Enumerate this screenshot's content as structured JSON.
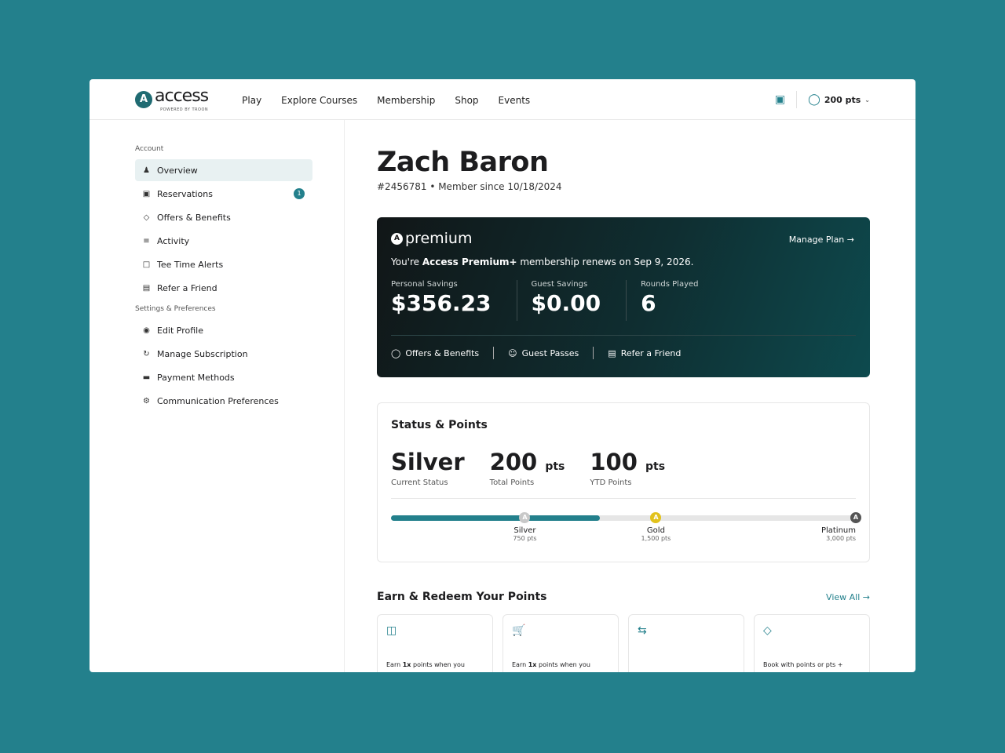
{
  "header": {
    "logo": "access",
    "logo_sub": "POWERED BY TROON",
    "nav": [
      "Play",
      "Explore Courses",
      "Membership",
      "Shop",
      "Events"
    ],
    "points": "200 pts"
  },
  "sidebar": {
    "account_heading": "Account",
    "account_items": [
      {
        "label": "Overview",
        "icon": "user-icon",
        "active": true
      },
      {
        "label": "Reservations",
        "icon": "calendar-icon",
        "badge": "1"
      },
      {
        "label": "Offers & Benefits",
        "icon": "tag-icon"
      },
      {
        "label": "Activity",
        "icon": "list-icon"
      },
      {
        "label": "Tee Time Alerts",
        "icon": "alert-icon"
      },
      {
        "label": "Refer a Friend",
        "icon": "gift-icon"
      }
    ],
    "settings_heading": "Settings & Preferences",
    "settings_items": [
      {
        "label": "Edit Profile",
        "icon": "profile-icon"
      },
      {
        "label": "Manage Subscription",
        "icon": "refresh-icon"
      },
      {
        "label": "Payment Methods",
        "icon": "card-icon"
      },
      {
        "label": "Communication Preferences",
        "icon": "settings-icon"
      }
    ]
  },
  "profile": {
    "name": "Zach Baron",
    "meta": "#2456781 • Member since 10/18/2024"
  },
  "membership": {
    "brand": "premium",
    "manage": "Manage Plan",
    "renew_pre": "You're ",
    "renew_bold": "Access Premium+",
    "renew_post": " membership renews on Sep 9, 2026.",
    "stats": [
      {
        "label": "Personal Savings",
        "value": "$356.23"
      },
      {
        "label": "Guest Savings",
        "value": "$0.00"
      },
      {
        "label": "Rounds Played",
        "value": "6"
      }
    ],
    "links": [
      "Offers & Benefits",
      "Guest Passes",
      "Refer a Friend"
    ]
  },
  "status": {
    "title": "Status & Points",
    "current": {
      "value": "Silver",
      "label": "Current Status"
    },
    "total": {
      "value": "200",
      "unit": "pts",
      "label": "Total Points"
    },
    "ytd": {
      "value": "100",
      "unit": "pts",
      "label": "YTD Points"
    },
    "progress": 0.45,
    "tiers": [
      {
        "name": "Silver",
        "pts": "750 pts",
        "color": "#c8c8c8"
      },
      {
        "name": "Gold",
        "pts": "1,500 pts",
        "color": "#e2c21c"
      },
      {
        "name": "Platinum",
        "pts": "3,000 pts",
        "color": "#555555"
      }
    ]
  },
  "earn": {
    "title": "Earn & Redeem Your Points",
    "view_all": "View All",
    "tiles": [
      {
        "icon": "map-icon",
        "pre": "Earn ",
        "bold": "1x",
        "post": " points when you"
      },
      {
        "icon": "cart-icon",
        "pre": "Earn ",
        "bold": "1x",
        "post": " points when you"
      },
      {
        "icon": "swap-icon",
        "pre": "",
        "bold": "",
        "post": ""
      },
      {
        "icon": "tag-icon",
        "pre": "Book with points or pts +",
        "bold": "",
        "post": ""
      }
    ]
  }
}
